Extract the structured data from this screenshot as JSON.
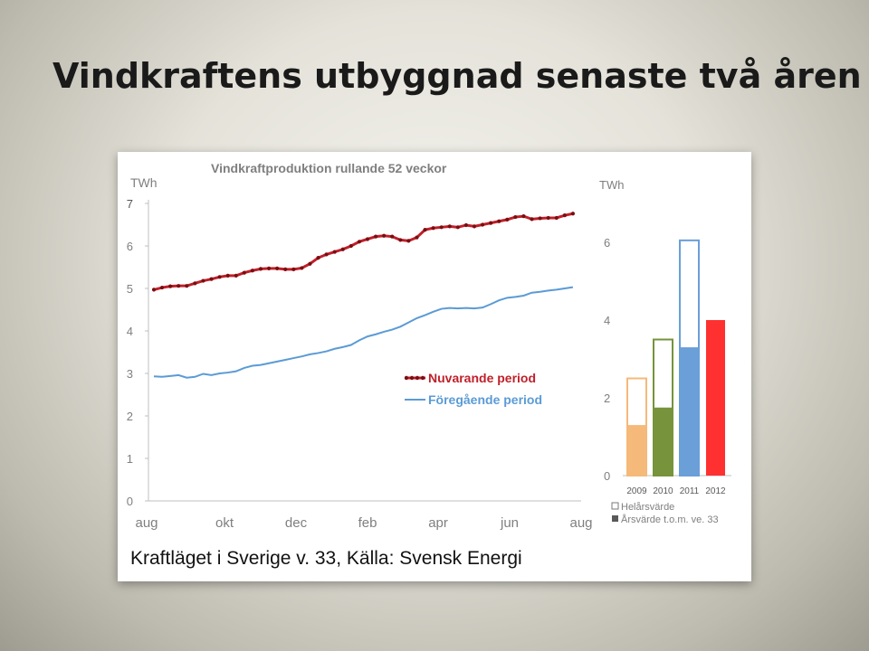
{
  "slide": {
    "title": "Vindkraftens utbyggnad senaste två åren"
  },
  "caption": "Kraftläget i Sverige v. 33, Källa: Svensk Energi",
  "colors": {
    "current_line": "#c0202a",
    "current_marker": "#7a0e12",
    "previous_line": "#5b9bd5",
    "axis": "#bfbfbf",
    "tick_text": "#7f7f7f",
    "title_text": "#7f7f7f"
  },
  "chart_data": [
    {
      "type": "line",
      "title": "Vindkraftproduktion rullande 52 veckor",
      "ylabel": "TWh",
      "ylim": [
        0,
        7
      ],
      "yticks": [
        0,
        1,
        2,
        3,
        4,
        5,
        6,
        7
      ],
      "x_tick_labels": [
        "aug",
        "okt",
        "dec",
        "feb",
        "apr",
        "jun",
        "aug"
      ],
      "xlim": [
        0,
        52
      ],
      "x_tick_weeks": [
        0,
        8.6,
        17.3,
        26,
        34.6,
        43.3,
        52
      ],
      "legend_position": "center-right",
      "series": [
        {
          "name": "Nuvarande period",
          "color": "#c0202a",
          "marker": "dot",
          "values": [
            4.97,
            5.02,
            5.05,
            5.06,
            5.06,
            5.12,
            5.18,
            5.22,
            5.27,
            5.3,
            5.3,
            5.37,
            5.42,
            5.46,
            5.47,
            5.47,
            5.45,
            5.45,
            5.48,
            5.58,
            5.72,
            5.8,
            5.86,
            5.92,
            6.0,
            6.1,
            6.16,
            6.22,
            6.24,
            6.22,
            6.14,
            6.12,
            6.2,
            6.38,
            6.42,
            6.44,
            6.46,
            6.44,
            6.49,
            6.46,
            6.5,
            6.54,
            6.58,
            6.62,
            6.68,
            6.7,
            6.63,
            6.65,
            6.66,
            6.66,
            6.72,
            6.76
          ]
        },
        {
          "name": "Föregående period",
          "color": "#5b9bd5",
          "marker": "none",
          "values": [
            2.93,
            2.92,
            2.94,
            2.96,
            2.9,
            2.92,
            2.99,
            2.96,
            3.0,
            3.02,
            3.05,
            3.13,
            3.18,
            3.2,
            3.24,
            3.28,
            3.32,
            3.36,
            3.4,
            3.45,
            3.48,
            3.52,
            3.58,
            3.62,
            3.67,
            3.78,
            3.87,
            3.92,
            3.98,
            4.03,
            4.1,
            4.2,
            4.3,
            4.37,
            4.45,
            4.52,
            4.54,
            4.53,
            4.54,
            4.53,
            4.55,
            4.63,
            4.72,
            4.78,
            4.8,
            4.83,
            4.9,
            4.92,
            4.95,
            4.97,
            5.0,
            5.03
          ]
        }
      ]
    },
    {
      "type": "bar",
      "ylabel": "TWh",
      "ylim": [
        0,
        7
      ],
      "yticks": [
        0,
        2,
        4,
        6
      ],
      "categories": [
        "2009",
        "2010",
        "2011",
        "2012"
      ],
      "colors": [
        "#f5b97a",
        "#77933c",
        "#6a9fd8",
        "#ff3030"
      ],
      "series": [
        {
          "name": "Helårsvärde",
          "style": "outline",
          "values": [
            2.5,
            3.5,
            6.05,
            null
          ]
        },
        {
          "name": "Årsvärde t.o.m. ve. 33",
          "style": "filled",
          "values": [
            1.3,
            1.75,
            3.3,
            4.0
          ]
        }
      ],
      "legend_position": "bottom"
    }
  ]
}
